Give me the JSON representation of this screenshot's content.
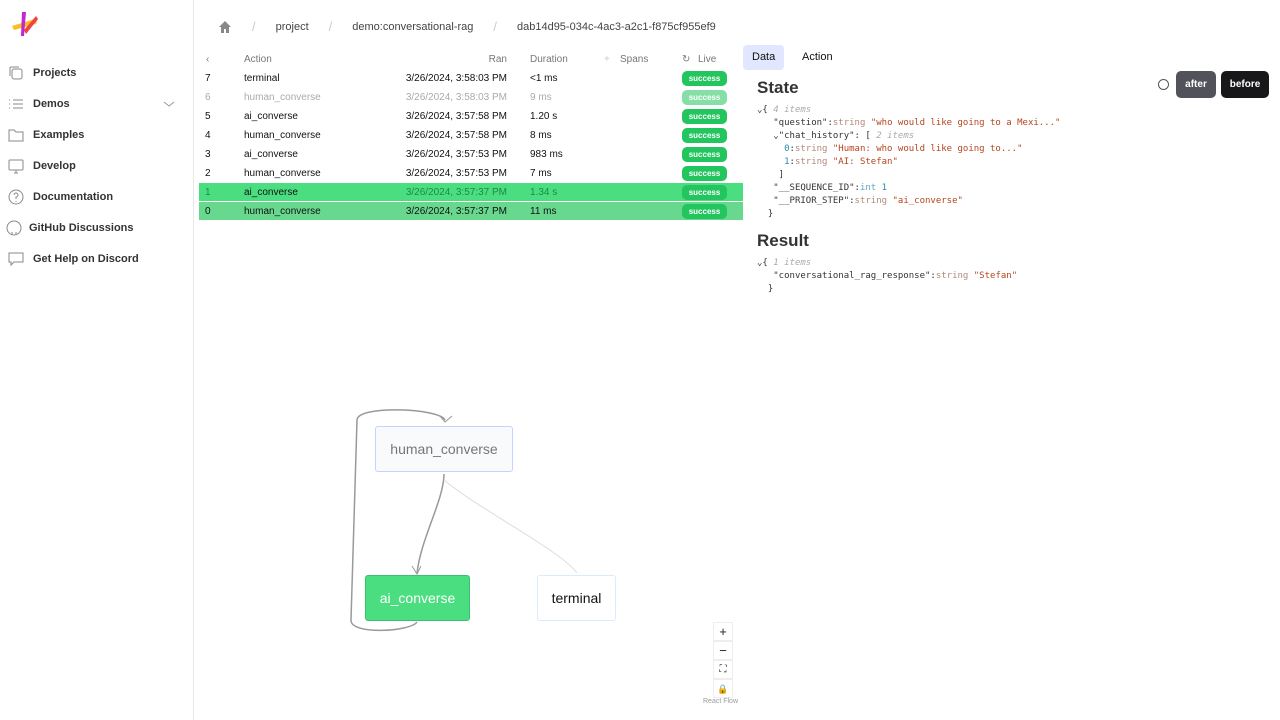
{
  "sidebar": {
    "items": [
      {
        "label": "Projects",
        "icon": "copy-icon"
      },
      {
        "label": "Demos",
        "icon": "list-icon"
      },
      {
        "label": "Examples",
        "icon": "folder-icon"
      },
      {
        "label": "Develop",
        "icon": "monitor-icon"
      },
      {
        "label": "Documentation",
        "icon": "help-circle-icon"
      },
      {
        "label": "GitHub Discussions",
        "icon": "github-icon"
      },
      {
        "label": "Get Help on Discord",
        "icon": "chat-icon"
      }
    ]
  },
  "breadcrumb": [
    "project",
    "demo:conversational-rag",
    "dab14d95-034c-4ac3-a2c1-f875cf955ef9"
  ],
  "table": {
    "headers": {
      "action": "Action",
      "ran": "Ran",
      "duration": "Duration",
      "spans": "Spans",
      "live": "Live"
    },
    "rows": [
      {
        "idx": "7",
        "action": "terminal",
        "ran": "3/26/2024, 3:58:03 PM",
        "duration": "<1 ms",
        "status": "success"
      },
      {
        "idx": "6",
        "action": "human_converse",
        "ran": "3/26/2024, 3:58:03 PM",
        "duration": "9 ms",
        "status": "success"
      },
      {
        "idx": "5",
        "action": "ai_converse",
        "ran": "3/26/2024, 3:57:58 PM",
        "duration": "1.20 s",
        "status": "success"
      },
      {
        "idx": "4",
        "action": "human_converse",
        "ran": "3/26/2024, 3:57:58 PM",
        "duration": "8 ms",
        "status": "success"
      },
      {
        "idx": "3",
        "action": "ai_converse",
        "ran": "3/26/2024, 3:57:53 PM",
        "duration": "983 ms",
        "status": "success"
      },
      {
        "idx": "2",
        "action": "human_converse",
        "ran": "3/26/2024, 3:57:53 PM",
        "duration": "7 ms",
        "status": "success"
      },
      {
        "idx": "1",
        "action": "ai_converse",
        "ran": "3/26/2024, 3:57:37 PM",
        "duration": "1.34 s",
        "status": "success"
      },
      {
        "idx": "0",
        "action": "human_converse",
        "ran": "3/26/2024, 3:57:37 PM",
        "duration": "11 ms",
        "status": "success"
      }
    ]
  },
  "panel": {
    "tabs": [
      "Data",
      "Action"
    ],
    "state_title": "State",
    "result_title": "Result",
    "after": "after",
    "before": "before",
    "state": {
      "count": "4 items",
      "question_key": "\"question\"",
      "question_val": "\"who would like going to a Mexi...\"",
      "chat_key": "\"chat_history\"",
      "chat_count": "2 items",
      "chat0": "\"Human: who would like going to...\"",
      "chat1": "\"AI: Stefan\"",
      "seq_key": "\"__SEQUENCE_ID\"",
      "seq_val": "1",
      "prior_key": "\"__PRIOR_STEP\"",
      "prior_val": "\"ai_converse\""
    },
    "result": {
      "count": "1 items",
      "key": "\"conversational_rag_response\"",
      "val": "\"Stefan\""
    },
    "types": {
      "string": "string",
      "int": "int"
    }
  },
  "graph": {
    "nodes": [
      "human_converse",
      "ai_converse",
      "terminal"
    ],
    "attribution": "React Flow"
  },
  "colors": {
    "success": "#22c55e",
    "selected_row": "#4ade80",
    "active_node": "#4ade80"
  }
}
